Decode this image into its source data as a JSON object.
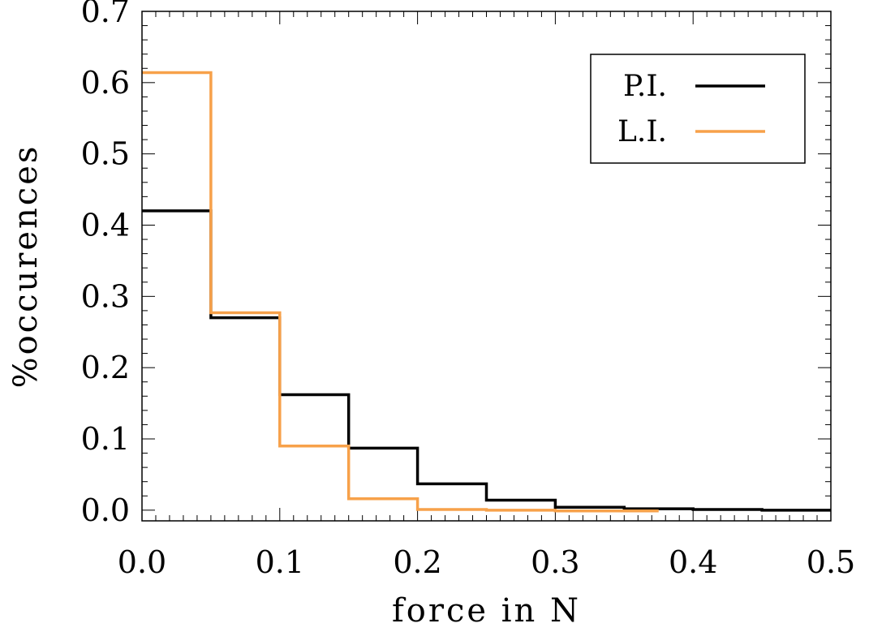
{
  "chart_data": {
    "type": "step",
    "title": "",
    "xlabel": "force in N",
    "ylabel": "%occurences",
    "xlim": [
      0.0,
      0.5
    ],
    "ylim": [
      -0.015,
      0.7
    ],
    "x_ticks": [
      0.0,
      0.1,
      0.2,
      0.3,
      0.4,
      0.5
    ],
    "x_tick_labels": [
      "0.0",
      "0.1",
      "0.2",
      "0.3",
      "0.4",
      "0.5"
    ],
    "y_ticks": [
      0.0,
      0.1,
      0.2,
      0.3,
      0.4,
      0.5,
      0.6,
      0.7
    ],
    "y_tick_labels": [
      "0.0",
      "0.1",
      "0.2",
      "0.3",
      "0.4",
      "0.5",
      "0.6",
      "0.7"
    ],
    "bin_edges": [
      0.0,
      0.05,
      0.1,
      0.15,
      0.2,
      0.25,
      0.3,
      0.35,
      0.4,
      0.45,
      0.5
    ],
    "legend_position": "top-right",
    "series": [
      {
        "name": "P.I.",
        "color": "#000000",
        "values": [
          0.42,
          0.27,
          0.162,
          0.087,
          0.037,
          0.014,
          0.004,
          0.002,
          0.001,
          0.0
        ]
      },
      {
        "name": "L.I.",
        "color": "#f7a14a",
        "x_end": 0.375,
        "values": [
          0.614,
          0.277,
          0.09,
          0.016,
          0.001,
          0.0,
          -0.001,
          -0.001
        ]
      }
    ]
  }
}
